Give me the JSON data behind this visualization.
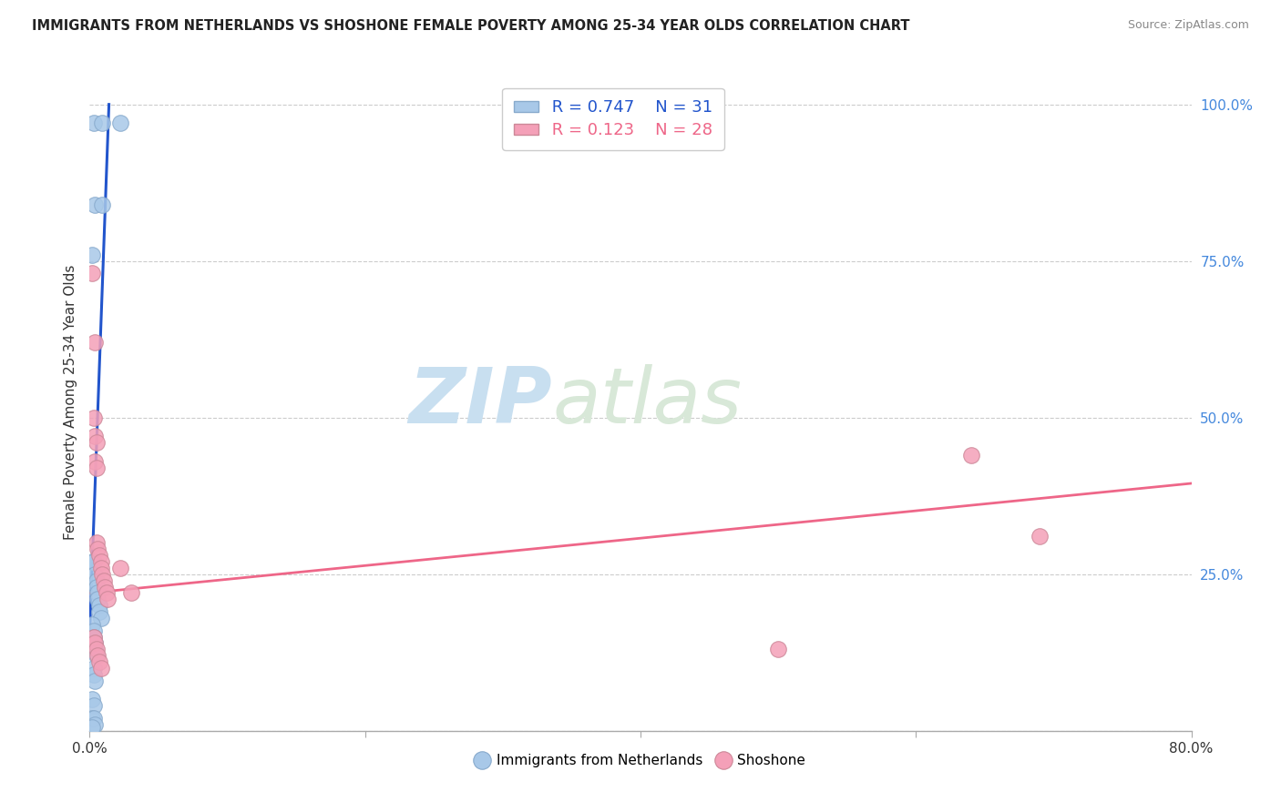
{
  "title": "IMMIGRANTS FROM NETHERLANDS VS SHOSHONE FEMALE POVERTY AMONG 25-34 YEAR OLDS CORRELATION CHART",
  "source": "Source: ZipAtlas.com",
  "ylabel": "Female Poverty Among 25-34 Year Olds",
  "xlim": [
    0.0,
    0.8
  ],
  "ylim": [
    0.0,
    1.05
  ],
  "ytick_vals": [
    0.0,
    0.25,
    0.5,
    0.75,
    1.0
  ],
  "ytick_labels": [
    "",
    "25.0%",
    "50.0%",
    "75.0%",
    "100.0%"
  ],
  "xtick_vals": [
    0.0,
    0.2,
    0.4,
    0.6,
    0.8
  ],
  "xtick_labels": [
    "0.0%",
    "",
    "",
    "",
    "80.0%"
  ],
  "blue_color": "#a8c8e8",
  "pink_color": "#f4a0b8",
  "line_blue_color": "#2255cc",
  "line_pink_color": "#ee6688",
  "r_blue": "0.747",
  "n_blue": "31",
  "r_pink": "0.123",
  "n_pink": "28",
  "watermark_zip": "ZIP",
  "watermark_atlas": "atlas",
  "legend_label_blue": "Immigrants from Netherlands",
  "legend_label_pink": "Shoshone",
  "blue_x": [
    0.003,
    0.009,
    0.022,
    0.004,
    0.009,
    0.002,
    0.002,
    0.003,
    0.004,
    0.005,
    0.005,
    0.006,
    0.006,
    0.007,
    0.007,
    0.008,
    0.002,
    0.003,
    0.003,
    0.004,
    0.004,
    0.005,
    0.003,
    0.003,
    0.004,
    0.002,
    0.003,
    0.002,
    0.003,
    0.004,
    0.002
  ],
  "blue_y": [
    0.97,
    0.97,
    0.97,
    0.84,
    0.84,
    0.76,
    0.27,
    0.27,
    0.25,
    0.24,
    0.23,
    0.22,
    0.21,
    0.2,
    0.19,
    0.18,
    0.17,
    0.16,
    0.15,
    0.14,
    0.13,
    0.12,
    0.1,
    0.09,
    0.08,
    0.05,
    0.04,
    0.02,
    0.02,
    0.01,
    0.005
  ],
  "pink_x": [
    0.002,
    0.004,
    0.003,
    0.004,
    0.005,
    0.004,
    0.005,
    0.005,
    0.006,
    0.007,
    0.008,
    0.008,
    0.009,
    0.01,
    0.011,
    0.012,
    0.013,
    0.022,
    0.03,
    0.5,
    0.64,
    0.69,
    0.003,
    0.004,
    0.005,
    0.006,
    0.007,
    0.008
  ],
  "pink_y": [
    0.73,
    0.62,
    0.5,
    0.47,
    0.46,
    0.43,
    0.42,
    0.3,
    0.29,
    0.28,
    0.27,
    0.26,
    0.25,
    0.24,
    0.23,
    0.22,
    0.21,
    0.26,
    0.22,
    0.13,
    0.44,
    0.31,
    0.15,
    0.14,
    0.13,
    0.12,
    0.11,
    0.1
  ],
  "blue_line_x0": 0.0,
  "blue_line_y0": 0.155,
  "blue_line_x1": 0.014,
  "blue_line_y1": 1.0,
  "pink_line_x0": 0.0,
  "pink_line_y0": 0.22,
  "pink_line_x1": 0.8,
  "pink_line_y1": 0.395
}
